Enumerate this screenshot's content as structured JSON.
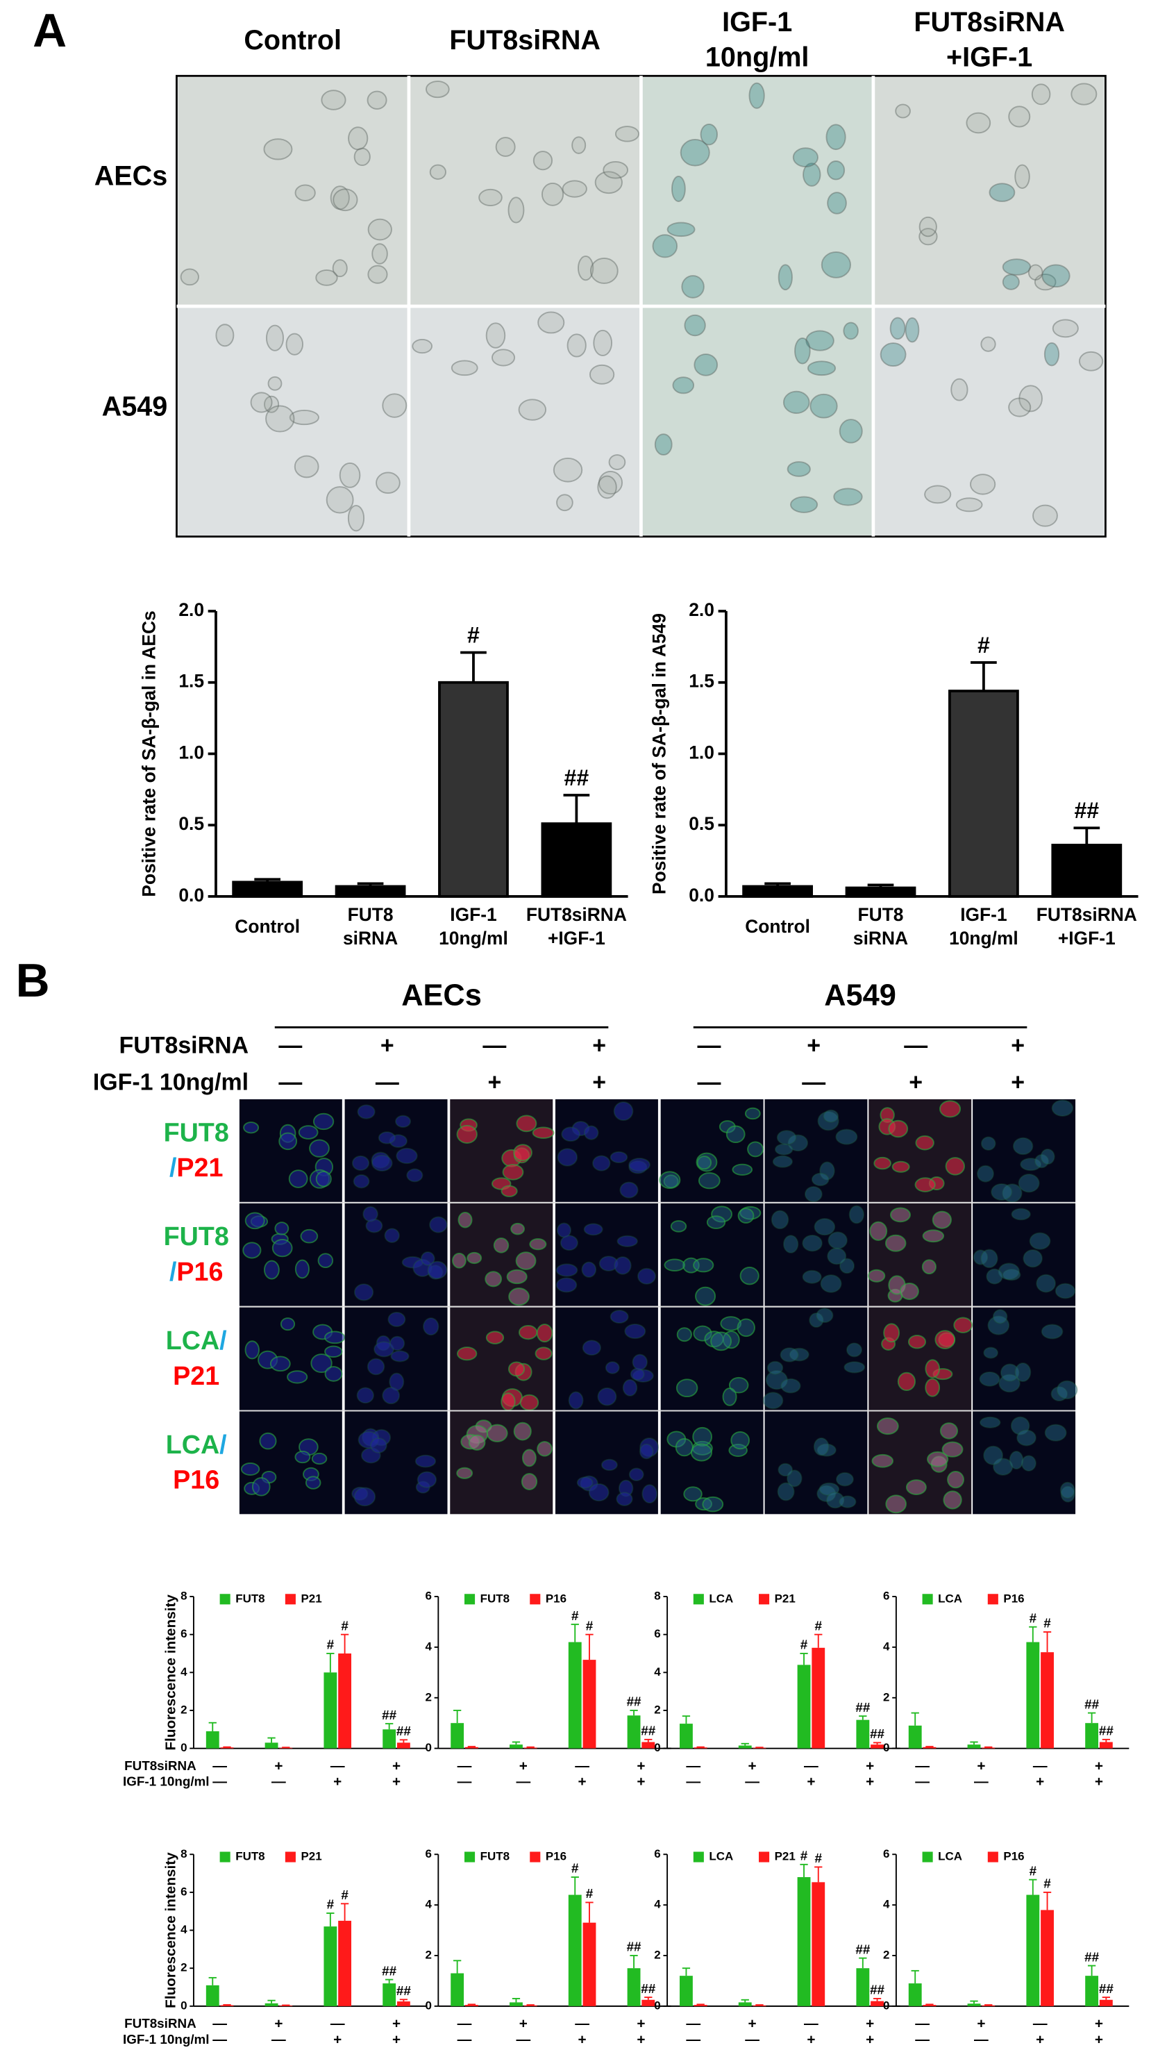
{
  "panel_a": {
    "label": "A",
    "columns": [
      "Control",
      "FUT8siRNA",
      "IGF-1\n10ng/ml",
      "FUT8siRNA\n+IGF-1"
    ],
    "rows": [
      "AECs",
      "A549"
    ]
  },
  "panel_b": {
    "label": "B",
    "groups": [
      "AECs",
      "A549"
    ],
    "treatments": [
      {
        "label": "FUT8siRNA",
        "signs": [
          "—",
          "+",
          "—",
          "+",
          "—",
          "+",
          "—",
          "+"
        ]
      },
      {
        "label": "IGF-1 10ng/ml",
        "signs": [
          "—",
          "—",
          "+",
          "+",
          "—",
          "—",
          "+",
          "+"
        ]
      }
    ],
    "rows": [
      {
        "stain": "FUT8",
        "sep": "/",
        "marker": "P21"
      },
      {
        "stain": "FUT8",
        "sep": "/",
        "marker": "P16"
      },
      {
        "stain": "LCA",
        "sep": "/",
        "marker": "P21"
      },
      {
        "stain": "LCA",
        "sep": "/",
        "marker": "P16"
      }
    ],
    "chart_rows": [
      {
        "sirna": "FUT8siRNA",
        "igf": "IGF-1 10ng/ml"
      },
      {
        "sirna": "FUT8siRNA",
        "igf": "IGF-1 10ng/ml"
      }
    ]
  },
  "chart_data": [
    {
      "type": "bar",
      "ylabel": "Positive rate of SA-β-gal in AECs",
      "categories": [
        "Control",
        "FUT8\nsiRNA",
        "IGF-1\n10ng/ml",
        "FUT8siRNA\n+IGF-1"
      ],
      "values": [
        0.1,
        0.07,
        1.5,
        0.51
      ],
      "errors": [
        0.02,
        0.02,
        0.21,
        0.2
      ],
      "colors": [
        "#000000",
        "#000000",
        "#333333",
        "#000000"
      ],
      "annotations": [
        null,
        null,
        "#",
        "##"
      ],
      "ylim": [
        0,
        2
      ],
      "yticks": [
        {
          "value": 0,
          "label": "0.0"
        },
        0.5,
        {
          "value": 1,
          "label": "1.0"
        },
        1.5,
        {
          "value": 2,
          "label": "2.0"
        }
      ]
    },
    {
      "type": "bar",
      "ylabel": "Positive rate of SA-β-gal in A549",
      "categories": [
        "Control",
        "FUT8\nsiRNA",
        "IGF-1\n10ng/ml",
        "FUT8siRNA\n+IGF-1"
      ],
      "values": [
        0.07,
        0.06,
        1.44,
        0.36
      ],
      "errors": [
        0.02,
        0.02,
        0.2,
        0.12
      ],
      "colors": [
        "#000000",
        "#000000",
        "#333333",
        "#000000"
      ],
      "annotations": [
        null,
        null,
        "#",
        "##"
      ],
      "ylim": [
        0,
        2
      ],
      "yticks": [
        {
          "value": 0,
          "label": "0.0"
        },
        0.5,
        {
          "value": 1,
          "label": "1.0"
        },
        1.5,
        {
          "value": 2,
          "label": "2.0"
        }
      ]
    },
    {
      "type": "bar",
      "ylabel": "Fluorescence intensity",
      "ylim": [
        0,
        8
      ],
      "yticks": [
        0,
        2,
        4,
        6,
        8
      ],
      "sirna_signs": [
        "—",
        "+",
        "—",
        "+"
      ],
      "igf_signs": [
        "—",
        "—",
        "+",
        "+"
      ],
      "series": [
        {
          "name": "FUT8",
          "color": "#22bb22",
          "values": [
            0.9,
            0.3,
            4.0,
            1.0
          ],
          "errors": [
            0.45,
            0.25,
            1.0,
            0.3
          ],
          "annotations": [
            null,
            null,
            "#",
            "##"
          ]
        },
        {
          "name": "P21",
          "color": "#ff1a1a",
          "values": [
            0.05,
            0.03,
            5.0,
            0.3
          ],
          "errors": [
            0.02,
            0.02,
            1.0,
            0.15
          ],
          "annotations": [
            null,
            null,
            "#",
            "##"
          ]
        }
      ]
    },
    {
      "type": "bar",
      "ylim": [
        0,
        6
      ],
      "yticks": [
        0,
        2,
        4,
        6
      ],
      "sirna_signs": [
        "—",
        "+",
        "—",
        "+"
      ],
      "igf_signs": [
        "—",
        "—",
        "+",
        "+"
      ],
      "series": [
        {
          "name": "FUT8",
          "color": "#22bb22",
          "values": [
            1.0,
            0.15,
            4.2,
            1.3
          ],
          "errors": [
            0.5,
            0.1,
            0.7,
            0.2
          ],
          "annotations": [
            null,
            null,
            "#",
            "##"
          ]
        },
        {
          "name": "P16",
          "color": "#ff1a1a",
          "values": [
            0.05,
            0.03,
            3.5,
            0.25
          ],
          "errors": [
            0.02,
            0.02,
            1.0,
            0.1
          ],
          "annotations": [
            null,
            null,
            "#",
            "##"
          ]
        }
      ]
    },
    {
      "type": "bar",
      "ylim": [
        0,
        8
      ],
      "yticks": [
        0,
        2,
        4,
        6,
        8
      ],
      "sirna_signs": [
        "—",
        "+",
        "—",
        "+"
      ],
      "igf_signs": [
        "—",
        "—",
        "+",
        "+"
      ],
      "series": [
        {
          "name": "LCA",
          "color": "#22bb22",
          "values": [
            1.3,
            0.15,
            4.4,
            1.5
          ],
          "errors": [
            0.4,
            0.1,
            0.6,
            0.2
          ],
          "annotations": [
            null,
            null,
            "#",
            "##"
          ]
        },
        {
          "name": "P21",
          "color": "#ff1a1a",
          "values": [
            0.05,
            0.03,
            5.3,
            0.2
          ],
          "errors": [
            0.02,
            0.02,
            0.7,
            0.1
          ],
          "annotations": [
            null,
            null,
            "#",
            "##"
          ]
        }
      ]
    },
    {
      "type": "bar",
      "ylim": [
        0,
        6
      ],
      "yticks": [
        0,
        2,
        4,
        6
      ],
      "sirna_signs": [
        "—",
        "+",
        "—",
        "+"
      ],
      "igf_signs": [
        "—",
        "—",
        "+",
        "+"
      ],
      "series": [
        {
          "name": "LCA",
          "color": "#22bb22",
          "values": [
            0.9,
            0.15,
            4.2,
            1.0
          ],
          "errors": [
            0.5,
            0.1,
            0.6,
            0.4
          ],
          "annotations": [
            null,
            null,
            "#",
            "##"
          ]
        },
        {
          "name": "P16",
          "color": "#ff1a1a",
          "values": [
            0.05,
            0.03,
            3.8,
            0.25
          ],
          "errors": [
            0.02,
            0.02,
            0.8,
            0.1
          ],
          "annotations": [
            null,
            null,
            "#",
            "##"
          ]
        }
      ]
    },
    {
      "type": "bar",
      "ylabel": "Fluorescence intensity",
      "ylim": [
        0,
        8
      ],
      "yticks": [
        0,
        2,
        4,
        6,
        8
      ],
      "sirna_signs": [
        "—",
        "+",
        "—",
        "+"
      ],
      "igf_signs": [
        "—",
        "—",
        "+",
        "+"
      ],
      "series": [
        {
          "name": "FUT8",
          "color": "#22bb22",
          "values": [
            1.1,
            0.15,
            4.2,
            1.2
          ],
          "errors": [
            0.4,
            0.15,
            0.7,
            0.2
          ],
          "annotations": [
            null,
            null,
            "#",
            "##"
          ]
        },
        {
          "name": "P21",
          "color": "#ff1a1a",
          "values": [
            0.05,
            0.03,
            4.5,
            0.25
          ],
          "errors": [
            0.02,
            0.02,
            0.9,
            0.1
          ],
          "annotations": [
            null,
            null,
            "#",
            "##"
          ]
        }
      ]
    },
    {
      "type": "bar",
      "ylim": [
        0,
        6
      ],
      "yticks": [
        0,
        2,
        4,
        6
      ],
      "sirna_signs": [
        "—",
        "+",
        "—",
        "+"
      ],
      "igf_signs": [
        "—",
        "—",
        "+",
        "+"
      ],
      "series": [
        {
          "name": "FUT8",
          "color": "#22bb22",
          "values": [
            1.3,
            0.15,
            4.4,
            1.5
          ],
          "errors": [
            0.5,
            0.15,
            0.7,
            0.5
          ],
          "annotations": [
            null,
            null,
            "#",
            "##"
          ]
        },
        {
          "name": "P16",
          "color": "#ff1a1a",
          "values": [
            0.05,
            0.03,
            3.3,
            0.25
          ],
          "errors": [
            0.02,
            0.02,
            0.8,
            0.1
          ],
          "annotations": [
            null,
            null,
            "#",
            "##"
          ]
        }
      ]
    },
    {
      "type": "bar",
      "ylim": [
        0,
        6
      ],
      "yticks": [
        0,
        2,
        4,
        6
      ],
      "sirna_signs": [
        "—",
        "+",
        "—",
        "+"
      ],
      "igf_signs": [
        "—",
        "—",
        "+",
        "+"
      ],
      "series": [
        {
          "name": "LCA",
          "color": "#22bb22",
          "values": [
            1.2,
            0.15,
            5.1,
            1.5
          ],
          "errors": [
            0.3,
            0.1,
            0.5,
            0.4
          ],
          "annotations": [
            null,
            null,
            "#",
            "##"
          ]
        },
        {
          "name": "P21",
          "color": "#ff1a1a",
          "values": [
            0.05,
            0.03,
            4.9,
            0.2
          ],
          "errors": [
            0.02,
            0.02,
            0.6,
            0.1
          ],
          "annotations": [
            null,
            null,
            "#",
            "##"
          ]
        }
      ]
    },
    {
      "type": "bar",
      "ylim": [
        0,
        6
      ],
      "yticks": [
        0,
        2,
        4,
        6
      ],
      "sirna_signs": [
        "—",
        "+",
        "—",
        "+"
      ],
      "igf_signs": [
        "—",
        "—",
        "+",
        "+"
      ],
      "series": [
        {
          "name": "LCA",
          "color": "#22bb22",
          "values": [
            0.9,
            0.1,
            4.4,
            1.2
          ],
          "errors": [
            0.5,
            0.1,
            0.6,
            0.4
          ],
          "annotations": [
            null,
            null,
            "#",
            "##"
          ]
        },
        {
          "name": "P16",
          "color": "#ff1a1a",
          "values": [
            0.05,
            0.03,
            3.8,
            0.25
          ],
          "errors": [
            0.02,
            0.02,
            0.7,
            0.1
          ],
          "annotations": [
            null,
            null,
            "#",
            "##"
          ]
        }
      ]
    }
  ]
}
